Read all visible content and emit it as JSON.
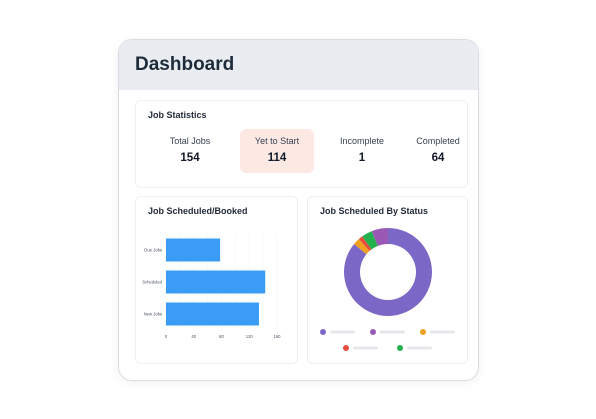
{
  "header": {
    "title": "Dashboard"
  },
  "job_statistics": {
    "title": "Job Statistics",
    "stats": [
      {
        "label": "Total Jobs",
        "value": "154"
      },
      {
        "label": "Yet to Start",
        "value": "114"
      },
      {
        "label": "Incomplete",
        "value": "1"
      },
      {
        "label": "Completed",
        "value": "64"
      }
    ],
    "highlight_color": "#fde9e3"
  },
  "bar_panel": {
    "title": "Job Scheduled/Booked"
  },
  "donut_panel": {
    "title": "Job Scheduled By Status"
  },
  "chart_data": [
    {
      "type": "bar",
      "orientation": "horizontal",
      "title": "Job Scheduled/Booked",
      "categories": [
        "Due Jobs",
        "Scheduled",
        "New Jobs"
      ],
      "values": [
        78,
        143,
        134
      ],
      "xlim": [
        0,
        160
      ],
      "xticks": [
        "0",
        "40",
        "80",
        "120",
        "160"
      ],
      "color": "#3b9cf5",
      "grid": true
    },
    {
      "type": "pie",
      "style": "donut",
      "title": "Job Scheduled By Status",
      "values": [
        86,
        2.5,
        1.5,
        4,
        6
      ],
      "colors": [
        "#7b68c6",
        "#f0a020",
        "#e74c3c",
        "#22b14c",
        "#9b59b6"
      ],
      "legend_colors": [
        "#7b68c6",
        "#9b59b6",
        "#f0a020",
        "#e74c3c",
        "#22b14c"
      ],
      "legend_placement": "bottom"
    }
  ]
}
